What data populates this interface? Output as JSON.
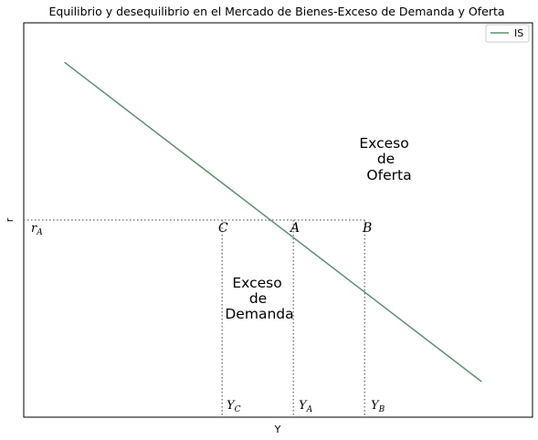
{
  "chart_data": {
    "type": "line",
    "title": "Equilibrio y desequilibrio en el Mercado de Bienes-Exceso de Demanda y Oferta",
    "xlabel": "Y",
    "ylabel": "r",
    "xlim": [
      0,
      100
    ],
    "ylim": [
      0,
      100
    ],
    "grid": false,
    "legend": {
      "placement": "top-right",
      "entries": [
        "IS"
      ]
    },
    "colors": {
      "IS": "#5f8f6f",
      "guides": "#808080"
    },
    "series": [
      {
        "name": "IS",
        "x": [
          8,
          90
        ],
        "y": [
          90,
          9
        ]
      }
    ],
    "points": {
      "A": {
        "label": "A",
        "x": 53,
        "y": 50
      },
      "B": {
        "label": "B",
        "x": 67,
        "y": 50
      },
      "C": {
        "label": "C",
        "x": 39,
        "y": 50
      }
    },
    "tick_labels": {
      "rA": {
        "base": "r",
        "sub": "A"
      },
      "YC": {
        "base": "Y",
        "sub": "C"
      },
      "YA": {
        "base": "Y",
        "sub": "A"
      },
      "YB": {
        "base": "Y",
        "sub": "B"
      }
    },
    "annotations": {
      "oferta": [
        "Exceso",
        "de",
        "Oferta"
      ],
      "demanda": [
        "Exceso",
        "de",
        "Demanda"
      ]
    }
  }
}
